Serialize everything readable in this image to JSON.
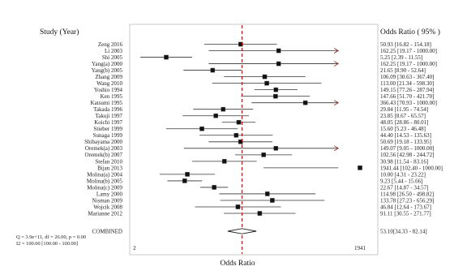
{
  "chart_data": {
    "type": "forest",
    "title": "",
    "xlabel": "Odds Ratio",
    "left_header": "Study (Year)",
    "right_header": "Odds Ratio ( 95% )",
    "x_ticks": [
      "2",
      "1941"
    ],
    "xlim": [
      2,
      1941
    ],
    "reference_value": 53.1,
    "studies": [
      {
        "label": "Zeng 2016",
        "or": 50.93,
        "lo": 16.82,
        "hi": 154.18,
        "or_text": "50.93 [16.82 - 154.18]",
        "arrow": false
      },
      {
        "label": "Li 2003",
        "or": 162.25,
        "lo": 19.17,
        "hi": 1000.0,
        "or_text": "162.25 [19.17 - 1000.00]",
        "arrow": true
      },
      {
        "label": "Shi 2005",
        "or": 5.25,
        "lo": 2.39,
        "hi": 11.55,
        "or_text": "5.25 [2.39 - 11.55]",
        "arrow": false
      },
      {
        "label": "Yang(a) 2000",
        "or": 162.25,
        "lo": 19.17,
        "hi": 1000.0,
        "or_text": "162.25 [19.17 - 1000.00]",
        "arrow": true
      },
      {
        "label": "Yang(b) 2005",
        "or": 21.65,
        "lo": 8.9,
        "hi": 52.64,
        "or_text": "21.65 [8.90 - 52.64]",
        "arrow": false
      },
      {
        "label": "Zhang 2009",
        "or": 106.09,
        "lo": 30.63,
        "hi": 367.4,
        "or_text": "106.09 [30.63 - 367.40]",
        "arrow": false
      },
      {
        "label": "Wang 2010",
        "or": 113.0,
        "lo": 21.34,
        "hi": 598.3,
        "or_text": "113.00 [21.34 - 598.30]",
        "arrow": false
      },
      {
        "label": "Yoshio 1994",
        "or": 149.15,
        "lo": 77.26,
        "hi": 287.94,
        "or_text": "149.15 [77.26 - 287.94]",
        "arrow": false
      },
      {
        "label": "Ken 1995",
        "or": 147.66,
        "lo": 51.7,
        "hi": 421.7,
        "or_text": "147.66 [51.70 - 421.70]",
        "arrow": false
      },
      {
        "label": "Katsumi 1995",
        "or": 366.43,
        "lo": 70.93,
        "hi": 1000.0,
        "or_text": "366.43 [70.93 - 1000.00]",
        "arrow": true
      },
      {
        "label": "Takada 1996",
        "or": 29.84,
        "lo": 11.95,
        "hi": 74.54,
        "or_text": "29.84 [11.95 - 74.54]",
        "arrow": false
      },
      {
        "label": "Takuji 1997",
        "or": 23.85,
        "lo": 8.67,
        "hi": 65.57,
        "or_text": "23.85 [8.67 - 65.57]",
        "arrow": false
      },
      {
        "label": "Koichi 1997",
        "or": 48.05,
        "lo": 28.86,
        "hi": 80.01,
        "or_text": "48.05 [28.86 - 80.01]",
        "arrow": false
      },
      {
        "label": "Stieber 1999",
        "or": 15.6,
        "lo": 5.23,
        "hi": 46.48,
        "or_text": "15.60 [5.23 - 46.48]",
        "arrow": false
      },
      {
        "label": "Sunaga 1999",
        "or": 44.4,
        "lo": 14.53,
        "hi": 135.63,
        "or_text": "44.40 [14.53 - 135.63]",
        "arrow": false
      },
      {
        "label": "Shibayama 2000",
        "or": 50.69,
        "lo": 19.18,
        "hi": 133.95,
        "or_text": "50.69 [19.18 - 133.95]",
        "arrow": false
      },
      {
        "label": "Oremek(a) 2003",
        "or": 149.07,
        "lo": 9.05,
        "hi": 1000.0,
        "or_text": "149.07 [9.05 - 1000.00]",
        "arrow": true
      },
      {
        "label": "Oremek(b) 2007",
        "or": 102.56,
        "lo": 42.98,
        "hi": 244.72,
        "or_text": "102.56 [42.98 - 244.72]",
        "arrow": false
      },
      {
        "label": "Stefan 2010",
        "or": 30.98,
        "lo": 11.54,
        "hi": 83.16,
        "or_text": "30.98 [11.54 - 83.16]",
        "arrow": false
      },
      {
        "label": "Bijan 2013",
        "or": 1941.44,
        "lo": 102.4,
        "hi": 1000.0,
        "or_text": "1941.44 [102.40 - 1000.00]",
        "arrow": false
      },
      {
        "label": "Molina(a) 2004",
        "or": 10.0,
        "lo": 4.31,
        "hi": 23.22,
        "or_text": "10.00 [4.31 - 23.22]",
        "arrow": false
      },
      {
        "label": "Molina(b) 2005",
        "or": 9.23,
        "lo": 5.44,
        "hi": 15.66,
        "or_text": "9.23 [5.44 - 15.66]",
        "arrow": false
      },
      {
        "label": "Molina(c) 2009",
        "or": 22.67,
        "lo": 14.87,
        "hi": 34.57,
        "or_text": "22.67 [14.87 - 34.57]",
        "arrow": false
      },
      {
        "label": "Lamy 2000",
        "or": 114.98,
        "lo": 26.5,
        "hi": 498.82,
        "or_text": "114.98 [26.50 - 498.82]",
        "arrow": false
      },
      {
        "label": "Nisman 2009",
        "or": 133.78,
        "lo": 27.23,
        "hi": 656.29,
        "or_text": "133.78 [27.23 - 656.29]",
        "arrow": false
      },
      {
        "label": "Wojcik 2008",
        "or": 46.84,
        "lo": 12.64,
        "hi": 173.67,
        "or_text": "46.84 [12.64 - 173.67]",
        "arrow": false
      },
      {
        "label": "Marianne 2012",
        "or": 91.11,
        "lo": 30.55,
        "hi": 271.77,
        "or_text": "91.11 [30.55 - 271.77]",
        "arrow": false
      }
    ],
    "combined": {
      "label": "COMBINED",
      "or": 53.1,
      "lo": 34.33,
      "hi": 82.14,
      "or_text": "53.10[34.33 - 82.14]"
    },
    "heterogeneity": [
      "Q = 3.9e+11, df = 26.00, p = 0.00",
      "I2 = 100.00 [100.00 - 100.00]"
    ],
    "colors": {
      "reference_line": "#b00000",
      "arrow": "#8b1a1a",
      "point": "#111111",
      "line": "#333333"
    }
  }
}
